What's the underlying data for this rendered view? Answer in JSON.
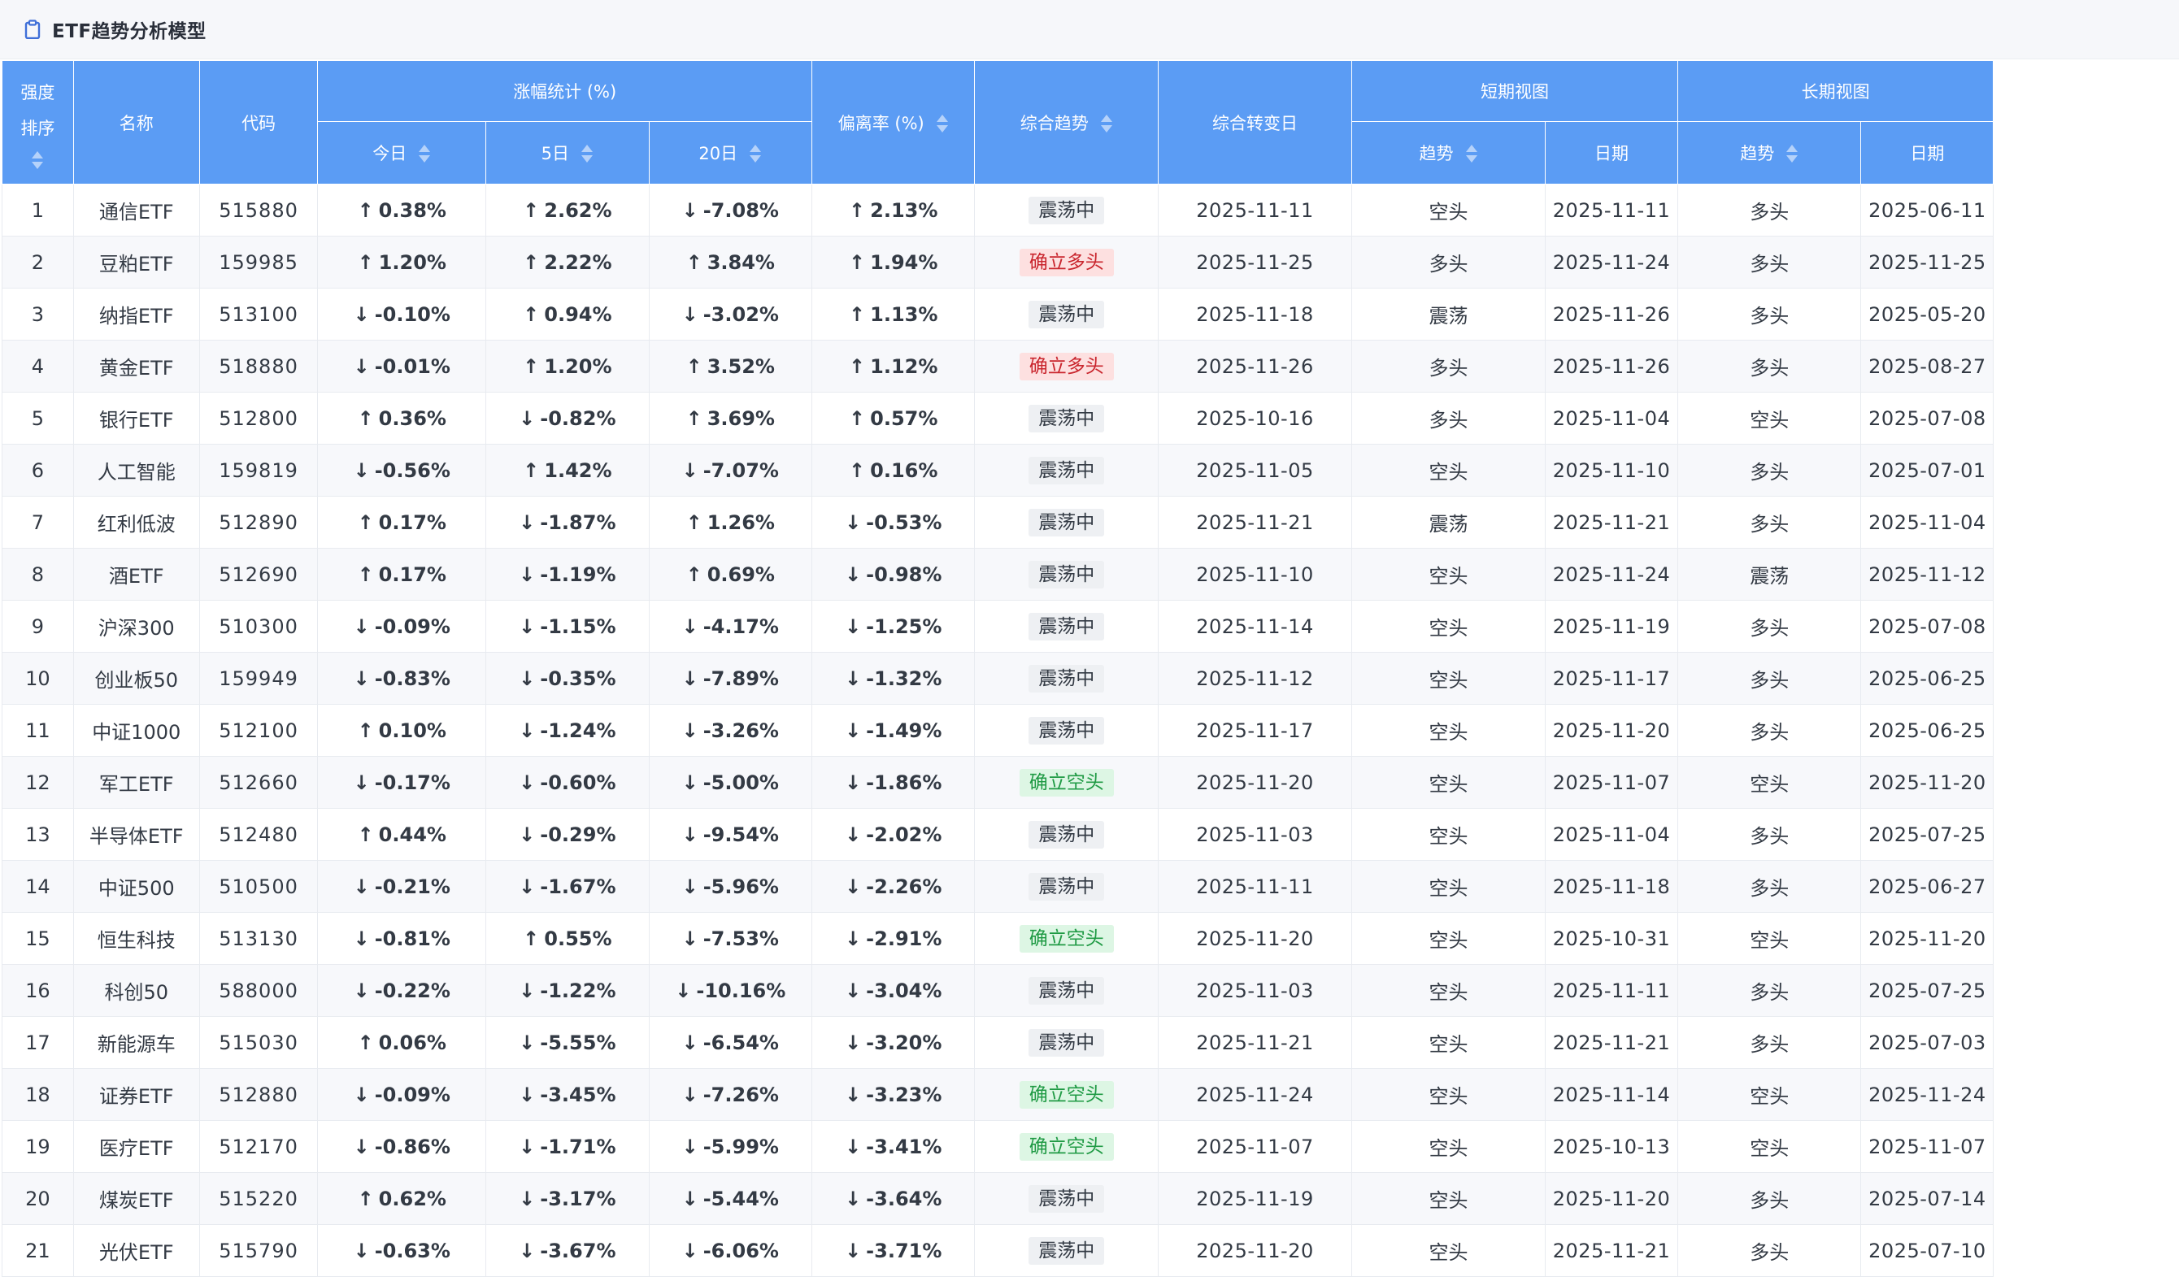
{
  "title": "ETF趋势分析模型",
  "headers": {
    "rank_l1": "强度",
    "rank_l2": "排序",
    "name": "名称",
    "code": "代码",
    "gain_group": "涨幅统计 (%)",
    "today": "今日",
    "d5": "5日",
    "d20": "20日",
    "deviation": "偏离率 (%)",
    "overall": "综合趋势",
    "overall_change": "综合转变日",
    "short_group": "短期视图",
    "long_group": "长期视图",
    "trend": "趋势",
    "date": "日期"
  },
  "colors": {
    "up": "#d9272e",
    "down": "#26a145",
    "header": "#5b9cf4",
    "link": "#2f6fd6"
  },
  "rows": [
    {
      "rank": "1",
      "name": "通信ETF",
      "code": "515880",
      "today": "0.38%",
      "today_dir": "up",
      "d5": "2.62%",
      "d5_dir": "up",
      "d20": "-7.08%",
      "d20_dir": "down",
      "dev": "2.13%",
      "dev_dir": "up",
      "overall": "震荡中",
      "overall_kind": "gray",
      "change": "2025-11-11",
      "s_trend": "空头",
      "s_kind": "down",
      "s_date": "2025-11-11",
      "l_trend": "多头",
      "l_kind": "up",
      "l_date": "2025-06-11"
    },
    {
      "rank": "2",
      "name": "豆粕ETF",
      "code": "159985",
      "today": "1.20%",
      "today_dir": "up",
      "d5": "2.22%",
      "d5_dir": "up",
      "d20": "3.84%",
      "d20_dir": "up",
      "dev": "1.94%",
      "dev_dir": "up",
      "overall": "确立多头",
      "overall_kind": "red",
      "change": "2025-11-25",
      "s_trend": "多头",
      "s_kind": "up",
      "s_date": "2025-11-24",
      "l_trend": "多头",
      "l_kind": "up",
      "l_date": "2025-11-25"
    },
    {
      "rank": "3",
      "name": "纳指ETF",
      "code": "513100",
      "today": "-0.10%",
      "today_dir": "down",
      "d5": "0.94%",
      "d5_dir": "up",
      "d20": "-3.02%",
      "d20_dir": "down",
      "dev": "1.13%",
      "dev_dir": "up",
      "overall": "震荡中",
      "overall_kind": "gray",
      "change": "2025-11-18",
      "s_trend": "震荡",
      "s_kind": "neu",
      "s_date": "2025-11-26",
      "l_trend": "多头",
      "l_kind": "up",
      "l_date": "2025-05-20"
    },
    {
      "rank": "4",
      "name": "黄金ETF",
      "code": "518880",
      "today": "-0.01%",
      "today_dir": "down",
      "d5": "1.20%",
      "d5_dir": "up",
      "d20": "3.52%",
      "d20_dir": "up",
      "dev": "1.12%",
      "dev_dir": "up",
      "overall": "确立多头",
      "overall_kind": "red",
      "change": "2025-11-26",
      "s_trend": "多头",
      "s_kind": "up",
      "s_date": "2025-11-26",
      "l_trend": "多头",
      "l_kind": "up",
      "l_date": "2025-08-27"
    },
    {
      "rank": "5",
      "name": "银行ETF",
      "code": "512800",
      "today": "0.36%",
      "today_dir": "up",
      "d5": "-0.82%",
      "d5_dir": "down",
      "d20": "3.69%",
      "d20_dir": "up",
      "dev": "0.57%",
      "dev_dir": "up",
      "overall": "震荡中",
      "overall_kind": "gray",
      "change": "2025-10-16",
      "s_trend": "多头",
      "s_kind": "up",
      "s_date": "2025-11-04",
      "l_trend": "空头",
      "l_kind": "down",
      "l_date": "2025-07-08"
    },
    {
      "rank": "6",
      "name": "人工智能",
      "code": "159819",
      "today": "-0.56%",
      "today_dir": "down",
      "d5": "1.42%",
      "d5_dir": "up",
      "d20": "-7.07%",
      "d20_dir": "down",
      "dev": "0.16%",
      "dev_dir": "up",
      "overall": "震荡中",
      "overall_kind": "gray",
      "change": "2025-11-05",
      "s_trend": "空头",
      "s_kind": "down",
      "s_date": "2025-11-10",
      "l_trend": "多头",
      "l_kind": "up",
      "l_date": "2025-07-01"
    },
    {
      "rank": "7",
      "name": "红利低波",
      "code": "512890",
      "today": "0.17%",
      "today_dir": "up",
      "d5": "-1.87%",
      "d5_dir": "down",
      "d20": "1.26%",
      "d20_dir": "up",
      "dev": "-0.53%",
      "dev_dir": "down",
      "overall": "震荡中",
      "overall_kind": "gray",
      "change": "2025-11-21",
      "s_trend": "震荡",
      "s_kind": "neu",
      "s_date": "2025-11-21",
      "l_trend": "多头",
      "l_kind": "up",
      "l_date": "2025-11-04"
    },
    {
      "rank": "8",
      "name": "酒ETF",
      "code": "512690",
      "today": "0.17%",
      "today_dir": "up",
      "d5": "-1.19%",
      "d5_dir": "down",
      "d20": "0.69%",
      "d20_dir": "up",
      "dev": "-0.98%",
      "dev_dir": "down",
      "overall": "震荡中",
      "overall_kind": "gray",
      "change": "2025-11-10",
      "s_trend": "空头",
      "s_kind": "down",
      "s_date": "2025-11-24",
      "l_trend": "震荡",
      "l_kind": "neu",
      "l_date": "2025-11-12"
    },
    {
      "rank": "9",
      "name": "沪深300",
      "code": "510300",
      "today": "-0.09%",
      "today_dir": "down",
      "d5": "-1.15%",
      "d5_dir": "down",
      "d20": "-4.17%",
      "d20_dir": "down",
      "dev": "-1.25%",
      "dev_dir": "down",
      "overall": "震荡中",
      "overall_kind": "gray",
      "change": "2025-11-14",
      "s_trend": "空头",
      "s_kind": "down",
      "s_date": "2025-11-19",
      "l_trend": "多头",
      "l_kind": "up",
      "l_date": "2025-07-08"
    },
    {
      "rank": "10",
      "name": "创业板50",
      "code": "159949",
      "today": "-0.83%",
      "today_dir": "down",
      "d5": "-0.35%",
      "d5_dir": "down",
      "d20": "-7.89%",
      "d20_dir": "down",
      "dev": "-1.32%",
      "dev_dir": "down",
      "overall": "震荡中",
      "overall_kind": "gray",
      "change": "2025-11-12",
      "s_trend": "空头",
      "s_kind": "down",
      "s_date": "2025-11-17",
      "l_trend": "多头",
      "l_kind": "up",
      "l_date": "2025-06-25"
    },
    {
      "rank": "11",
      "name": "中证1000",
      "code": "512100",
      "today": "0.10%",
      "today_dir": "up",
      "d5": "-1.24%",
      "d5_dir": "down",
      "d20": "-3.26%",
      "d20_dir": "down",
      "dev": "-1.49%",
      "dev_dir": "down",
      "overall": "震荡中",
      "overall_kind": "gray",
      "change": "2025-11-17",
      "s_trend": "空头",
      "s_kind": "down",
      "s_date": "2025-11-20",
      "l_trend": "多头",
      "l_kind": "up",
      "l_date": "2025-06-25"
    },
    {
      "rank": "12",
      "name": "军工ETF",
      "code": "512660",
      "today": "-0.17%",
      "today_dir": "down",
      "d5": "-0.60%",
      "d5_dir": "down",
      "d20": "-5.00%",
      "d20_dir": "down",
      "dev": "-1.86%",
      "dev_dir": "down",
      "overall": "确立空头",
      "overall_kind": "green",
      "change": "2025-11-20",
      "s_trend": "空头",
      "s_kind": "down",
      "s_date": "2025-11-07",
      "l_trend": "空头",
      "l_kind": "down",
      "l_date": "2025-11-20"
    },
    {
      "rank": "13",
      "name": "半导体ETF",
      "code": "512480",
      "today": "0.44%",
      "today_dir": "up",
      "d5": "-0.29%",
      "d5_dir": "down",
      "d20": "-9.54%",
      "d20_dir": "down",
      "dev": "-2.02%",
      "dev_dir": "down",
      "overall": "震荡中",
      "overall_kind": "gray",
      "change": "2025-11-03",
      "s_trend": "空头",
      "s_kind": "down",
      "s_date": "2025-11-04",
      "l_trend": "多头",
      "l_kind": "up",
      "l_date": "2025-07-25"
    },
    {
      "rank": "14",
      "name": "中证500",
      "code": "510500",
      "today": "-0.21%",
      "today_dir": "down",
      "d5": "-1.67%",
      "d5_dir": "down",
      "d20": "-5.96%",
      "d20_dir": "down",
      "dev": "-2.26%",
      "dev_dir": "down",
      "overall": "震荡中",
      "overall_kind": "gray",
      "change": "2025-11-11",
      "s_trend": "空头",
      "s_kind": "down",
      "s_date": "2025-11-18",
      "l_trend": "多头",
      "l_kind": "up",
      "l_date": "2025-06-27"
    },
    {
      "rank": "15",
      "name": "恒生科技",
      "code": "513130",
      "today": "-0.81%",
      "today_dir": "down",
      "d5": "0.55%",
      "d5_dir": "up",
      "d20": "-7.53%",
      "d20_dir": "down",
      "dev": "-2.91%",
      "dev_dir": "down",
      "overall": "确立空头",
      "overall_kind": "green",
      "change": "2025-11-20",
      "s_trend": "空头",
      "s_kind": "down",
      "s_date": "2025-10-31",
      "l_trend": "空头",
      "l_kind": "down",
      "l_date": "2025-11-20"
    },
    {
      "rank": "16",
      "name": "科创50",
      "code": "588000",
      "today": "-0.22%",
      "today_dir": "down",
      "d5": "-1.22%",
      "d5_dir": "down",
      "d20": "-10.16%",
      "d20_dir": "down",
      "dev": "-3.04%",
      "dev_dir": "down",
      "overall": "震荡中",
      "overall_kind": "gray",
      "change": "2025-11-03",
      "s_trend": "空头",
      "s_kind": "down",
      "s_date": "2025-11-11",
      "l_trend": "多头",
      "l_kind": "up",
      "l_date": "2025-07-25"
    },
    {
      "rank": "17",
      "name": "新能源车",
      "code": "515030",
      "today": "0.06%",
      "today_dir": "up",
      "d5": "-5.55%",
      "d5_dir": "down",
      "d20": "-6.54%",
      "d20_dir": "down",
      "dev": "-3.20%",
      "dev_dir": "down",
      "overall": "震荡中",
      "overall_kind": "gray",
      "change": "2025-11-21",
      "s_trend": "空头",
      "s_kind": "down",
      "s_date": "2025-11-21",
      "l_trend": "多头",
      "l_kind": "up",
      "l_date": "2025-07-03"
    },
    {
      "rank": "18",
      "name": "证券ETF",
      "code": "512880",
      "today": "-0.09%",
      "today_dir": "down",
      "d5": "-3.45%",
      "d5_dir": "down",
      "d20": "-7.26%",
      "d20_dir": "down",
      "dev": "-3.23%",
      "dev_dir": "down",
      "overall": "确立空头",
      "overall_kind": "green",
      "change": "2025-11-24",
      "s_trend": "空头",
      "s_kind": "down",
      "s_date": "2025-11-14",
      "l_trend": "空头",
      "l_kind": "down",
      "l_date": "2025-11-24"
    },
    {
      "rank": "19",
      "name": "医疗ETF",
      "code": "512170",
      "today": "-0.86%",
      "today_dir": "down",
      "d5": "-1.71%",
      "d5_dir": "down",
      "d20": "-5.99%",
      "d20_dir": "down",
      "dev": "-3.41%",
      "dev_dir": "down",
      "overall": "确立空头",
      "overall_kind": "green",
      "change": "2025-11-07",
      "s_trend": "空头",
      "s_kind": "down",
      "s_date": "2025-10-13",
      "l_trend": "空头",
      "l_kind": "down",
      "l_date": "2025-11-07"
    },
    {
      "rank": "20",
      "name": "煤炭ETF",
      "code": "515220",
      "today": "0.62%",
      "today_dir": "up",
      "d5": "-3.17%",
      "d5_dir": "down",
      "d20": "-5.44%",
      "d20_dir": "down",
      "dev": "-3.64%",
      "dev_dir": "down",
      "overall": "震荡中",
      "overall_kind": "gray",
      "change": "2025-11-19",
      "s_trend": "空头",
      "s_kind": "down",
      "s_date": "2025-11-20",
      "l_trend": "多头",
      "l_kind": "up",
      "l_date": "2025-07-14"
    },
    {
      "rank": "21",
      "name": "光伏ETF",
      "code": "515790",
      "today": "-0.63%",
      "today_dir": "down",
      "d5": "-3.67%",
      "d5_dir": "down",
      "d20": "-6.06%",
      "d20_dir": "down",
      "dev": "-3.71%",
      "dev_dir": "down",
      "overall": "震荡中",
      "overall_kind": "gray",
      "change": "2025-11-20",
      "s_trend": "空头",
      "s_kind": "down",
      "s_date": "2025-11-21",
      "l_trend": "多头",
      "l_kind": "up",
      "l_date": "2025-07-10"
    }
  ]
}
